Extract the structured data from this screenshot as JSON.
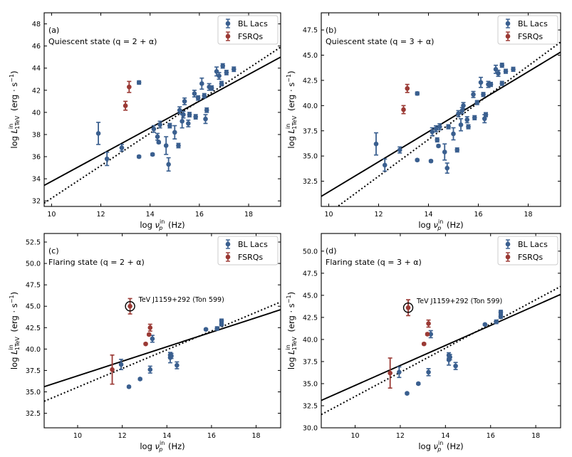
{
  "colors": {
    "bl": "#3a5f8f",
    "fsrq": "#9b3a35",
    "line": "#000000"
  },
  "chart_data": [
    {
      "type": "scatter",
      "panel_label": "(a)",
      "state_label": "Quiescent state (q = 2 + α)",
      "xlabel": "log ν_p^in (Hz)",
      "ylabel": "log L_1TeV^in (erg·s⁻¹)",
      "xlim": [
        9.7,
        19.3
      ],
      "ylim": [
        31.5,
        49.0
      ],
      "xticks": [
        10,
        12,
        14,
        16,
        18
      ],
      "yticks": [
        32,
        34,
        36,
        38,
        40,
        42,
        44,
        46,
        48
      ],
      "ytick_labels": [
        "32",
        "34",
        "36",
        "38",
        "40",
        "42",
        "44",
        "46",
        "48"
      ],
      "legend": [
        "BL Lacs",
        "FSRQs"
      ],
      "fit_solid": {
        "x": [
          9.7,
          19.3
        ],
        "y": [
          33.4,
          45.0
        ]
      },
      "fit_dotted": {
        "x": [
          9.7,
          19.3
        ],
        "y": [
          31.8,
          45.9
        ]
      },
      "series": [
        {
          "name": "BL Lacs",
          "points": [
            {
              "x": 11.9,
              "y": 38.1,
              "e": 1.0
            },
            {
              "x": 12.25,
              "y": 35.8,
              "e": 0.6
            },
            {
              "x": 12.85,
              "y": 36.8,
              "e": 0.3
            },
            {
              "x": 13.55,
              "y": 42.7,
              "e": 0.15
            },
            {
              "x": 13.55,
              "y": 36.0,
              "e": 0.1
            },
            {
              "x": 14.1,
              "y": 36.2,
              "e": 0.1
            },
            {
              "x": 14.15,
              "y": 38.5,
              "e": 0.3
            },
            {
              "x": 14.3,
              "y": 37.8,
              "e": 0.3
            },
            {
              "x": 14.35,
              "y": 37.3,
              "e": 0.1
            },
            {
              "x": 14.4,
              "y": 38.9,
              "e": 0.3
            },
            {
              "x": 14.65,
              "y": 37.0,
              "e": 0.8
            },
            {
              "x": 14.75,
              "y": 35.3,
              "e": 0.6
            },
            {
              "x": 14.8,
              "y": 38.8,
              "e": 0.2
            },
            {
              "x": 15.0,
              "y": 38.2,
              "e": 0.6
            },
            {
              "x": 15.15,
              "y": 37.0,
              "e": 0.2
            },
            {
              "x": 15.2,
              "y": 40.2,
              "e": 0.3
            },
            {
              "x": 15.3,
              "y": 39.2,
              "e": 0.6
            },
            {
              "x": 15.35,
              "y": 39.8,
              "e": 0.3
            },
            {
              "x": 15.4,
              "y": 41.0,
              "e": 0.3
            },
            {
              "x": 15.55,
              "y": 39.0,
              "e": 0.3
            },
            {
              "x": 15.6,
              "y": 39.8,
              "e": 0.2
            },
            {
              "x": 15.8,
              "y": 41.7,
              "e": 0.3
            },
            {
              "x": 15.85,
              "y": 39.6,
              "e": 0.2
            },
            {
              "x": 15.95,
              "y": 41.3,
              "e": 0.2
            },
            {
              "x": 16.1,
              "y": 42.6,
              "e": 0.5
            },
            {
              "x": 16.2,
              "y": 41.5,
              "e": 0.2
            },
            {
              "x": 16.25,
              "y": 39.4,
              "e": 0.4
            },
            {
              "x": 16.3,
              "y": 40.2,
              "e": 0.2
            },
            {
              "x": 16.4,
              "y": 42.3,
              "e": 0.3
            },
            {
              "x": 16.5,
              "y": 42.2,
              "e": 0.2
            },
            {
              "x": 16.7,
              "y": 43.7,
              "e": 0.4
            },
            {
              "x": 16.8,
              "y": 43.3,
              "e": 0.3
            },
            {
              "x": 16.9,
              "y": 42.6,
              "e": 0.2
            },
            {
              "x": 16.95,
              "y": 44.2,
              "e": 0.2
            },
            {
              "x": 17.1,
              "y": 43.6,
              "e": 0.2
            },
            {
              "x": 17.4,
              "y": 43.9,
              "e": 0.2
            }
          ]
        },
        {
          "name": "FSRQs",
          "points": [
            {
              "x": 13.0,
              "y": 40.6,
              "e": 0.4
            },
            {
              "x": 13.15,
              "y": 42.3,
              "e": 0.5
            }
          ]
        }
      ]
    },
    {
      "type": "scatter",
      "panel_label": "(b)",
      "state_label": "Quiescent state (q = 3 + α)",
      "xlabel": "log ν_p^in (Hz)",
      "ylabel": "log L_1TeV^in (erg·s⁻¹)",
      "xlim": [
        9.7,
        19.3
      ],
      "ylim": [
        30.0,
        49.2
      ],
      "xticks": [
        10,
        12,
        14,
        16,
        18
      ],
      "yticks": [
        32.5,
        35.0,
        37.5,
        40.0,
        42.5,
        45.0,
        47.5
      ],
      "ytick_labels": [
        "32.5",
        "35.0",
        "37.5",
        "40.0",
        "42.5",
        "45.0",
        "47.5"
      ],
      "legend": [
        "BL Lacs",
        "FSRQs"
      ],
      "fit_solid": {
        "x": [
          9.7,
          19.3
        ],
        "y": [
          31.0,
          45.3
        ]
      },
      "fit_dotted": {
        "x": [
          9.7,
          19.3
        ],
        "y": [
          28.8,
          46.3
        ]
      },
      "series": [
        {
          "name": "BL Lacs",
          "points": [
            {
              "x": 11.9,
              "y": 36.2,
              "e": 1.1
            },
            {
              "x": 12.25,
              "y": 34.1,
              "e": 0.6
            },
            {
              "x": 12.85,
              "y": 35.6,
              "e": 0.3
            },
            {
              "x": 13.55,
              "y": 41.2,
              "e": 0.15
            },
            {
              "x": 13.55,
              "y": 34.6,
              "e": 0.1
            },
            {
              "x": 14.1,
              "y": 34.5,
              "e": 0.1
            },
            {
              "x": 14.15,
              "y": 37.4,
              "e": 0.4
            },
            {
              "x": 14.3,
              "y": 37.7,
              "e": 0.3
            },
            {
              "x": 14.35,
              "y": 36.6,
              "e": 0.2
            },
            {
              "x": 14.4,
              "y": 36.0,
              "e": 0.1
            },
            {
              "x": 14.45,
              "y": 37.9,
              "e": 0.3
            },
            {
              "x": 14.65,
              "y": 35.4,
              "e": 0.8
            },
            {
              "x": 14.75,
              "y": 33.8,
              "e": 0.5
            },
            {
              "x": 14.8,
              "y": 37.9,
              "e": 0.2
            },
            {
              "x": 15.0,
              "y": 37.2,
              "e": 0.6
            },
            {
              "x": 15.15,
              "y": 35.6,
              "e": 0.2
            },
            {
              "x": 15.2,
              "y": 39.2,
              "e": 0.3
            },
            {
              "x": 15.3,
              "y": 38.1,
              "e": 0.6
            },
            {
              "x": 15.35,
              "y": 39.5,
              "e": 0.3
            },
            {
              "x": 15.4,
              "y": 40.0,
              "e": 0.3
            },
            {
              "x": 15.55,
              "y": 38.6,
              "e": 0.3
            },
            {
              "x": 15.6,
              "y": 37.9,
              "e": 0.2
            },
            {
              "x": 15.8,
              "y": 41.1,
              "e": 0.3
            },
            {
              "x": 15.85,
              "y": 38.8,
              "e": 0.2
            },
            {
              "x": 15.95,
              "y": 40.3,
              "e": 0.2
            },
            {
              "x": 16.1,
              "y": 42.3,
              "e": 0.5
            },
            {
              "x": 16.2,
              "y": 41.1,
              "e": 0.2
            },
            {
              "x": 16.25,
              "y": 38.7,
              "e": 0.4
            },
            {
              "x": 16.3,
              "y": 39.1,
              "e": 0.2
            },
            {
              "x": 16.4,
              "y": 42.1,
              "e": 0.3
            },
            {
              "x": 16.5,
              "y": 42.1,
              "e": 0.2
            },
            {
              "x": 16.7,
              "y": 43.6,
              "e": 0.4
            },
            {
              "x": 16.8,
              "y": 43.2,
              "e": 0.3
            },
            {
              "x": 16.95,
              "y": 42.2,
              "e": 0.2
            },
            {
              "x": 16.95,
              "y": 44.0,
              "e": 0.2
            },
            {
              "x": 17.1,
              "y": 43.4,
              "e": 0.2
            },
            {
              "x": 17.4,
              "y": 43.6,
              "e": 0.2
            }
          ]
        },
        {
          "name": "FSRQs",
          "points": [
            {
              "x": 13.0,
              "y": 39.6,
              "e": 0.4
            },
            {
              "x": 13.15,
              "y": 41.7,
              "e": 0.4
            }
          ]
        }
      ]
    },
    {
      "type": "scatter",
      "panel_label": "(c)",
      "state_label": "Flaring state (q = 2 + α)",
      "xlabel": "log ν_p^in (Hz)",
      "ylabel": "log L_1TeV^in (erg·s⁻¹)",
      "xlim": [
        8.5,
        19.1
      ],
      "ylim": [
        30.8,
        53.5
      ],
      "xticks": [
        10,
        12,
        14,
        16,
        18
      ],
      "yticks": [
        32.5,
        35.0,
        37.5,
        40.0,
        42.5,
        45.0,
        47.5,
        50.0,
        52.5
      ],
      "ytick_labels": [
        "32.5",
        "35.0",
        "37.5",
        "40.0",
        "42.5",
        "45.0",
        "47.5",
        "50.0",
        "52.5"
      ],
      "legend": [
        "BL Lacs",
        "FSRQs"
      ],
      "annotation": "TeV J1159+292 (Ton 599)",
      "highlight": {
        "x": 12.35,
        "y": 45.0,
        "e": 0.9
      },
      "fit_solid": {
        "x": [
          8.5,
          19.1
        ],
        "y": [
          35.6,
          44.6
        ]
      },
      "fit_dotted": {
        "x": [
          8.5,
          19.1
        ],
        "y": [
          33.9,
          45.5
        ]
      },
      "series": [
        {
          "name": "BL Lacs",
          "points": [
            {
              "x": 11.95,
              "y": 38.2,
              "e": 0.6
            },
            {
              "x": 12.3,
              "y": 35.6,
              "e": 0.1
            },
            {
              "x": 12.8,
              "y": 36.5,
              "e": 0.1
            },
            {
              "x": 13.25,
              "y": 37.6,
              "e": 0.4
            },
            {
              "x": 13.35,
              "y": 41.2,
              "e": 0.4
            },
            {
              "x": 14.15,
              "y": 39.3,
              "e": 0.3
            },
            {
              "x": 14.15,
              "y": 39.0,
              "e": 0.6
            },
            {
              "x": 14.2,
              "y": 39.2,
              "e": 0.3
            },
            {
              "x": 14.45,
              "y": 38.1,
              "e": 0.4
            },
            {
              "x": 15.75,
              "y": 42.3,
              "e": 0.1
            },
            {
              "x": 16.25,
              "y": 42.4,
              "e": 0.2
            },
            {
              "x": 16.45,
              "y": 42.9,
              "e": 0.2
            },
            {
              "x": 16.45,
              "y": 43.3,
              "e": 0.2
            }
          ]
        },
        {
          "name": "FSRQs",
          "points": [
            {
              "x": 11.55,
              "y": 37.6,
              "e": 1.7
            },
            {
              "x": 13.05,
              "y": 40.6,
              "e": 0.1
            },
            {
              "x": 13.2,
              "y": 41.7,
              "e": 0.1
            },
            {
              "x": 13.25,
              "y": 42.5,
              "e": 0.4
            }
          ]
        }
      ]
    },
    {
      "type": "scatter",
      "panel_label": "(d)",
      "state_label": "Flaring state (q = 3 + α)",
      "xlabel": "log ν_p^in (Hz)",
      "ylabel": "log L_1TeV^in (erg·s⁻¹)",
      "xlim": [
        8.5,
        19.1
      ],
      "ylim": [
        30.0,
        52.0
      ],
      "xticks": [
        10,
        12,
        14,
        16,
        18
      ],
      "yticks": [
        30.0,
        32.5,
        35.0,
        37.5,
        40.0,
        42.5,
        45.0,
        47.5,
        50.0
      ],
      "ytick_labels": [
        "30.0",
        "32.5",
        "35.0",
        "37.5",
        "40.0",
        "42.5",
        "45.0",
        "47.5",
        "50.0"
      ],
      "legend": [
        "BL Lacs",
        "FSRQs"
      ],
      "annotation": "TeV J1159+292 (Ton 599)",
      "highlight": {
        "x": 12.35,
        "y": 43.6,
        "e": 0.9
      },
      "fit_solid": {
        "x": [
          8.5,
          19.1
        ],
        "y": [
          33.1,
          45.1
        ]
      },
      "fit_dotted": {
        "x": [
          8.5,
          19.1
        ],
        "y": [
          31.5,
          46.0
        ]
      },
      "series": [
        {
          "name": "BL Lacs",
          "points": [
            {
              "x": 11.95,
              "y": 36.3,
              "e": 0.6
            },
            {
              "x": 12.3,
              "y": 33.9,
              "e": 0.1
            },
            {
              "x": 12.8,
              "y": 35.0,
              "e": 0.1
            },
            {
              "x": 13.25,
              "y": 36.3,
              "e": 0.4
            },
            {
              "x": 13.35,
              "y": 40.6,
              "e": 0.4
            },
            {
              "x": 14.15,
              "y": 38.2,
              "e": 0.3
            },
            {
              "x": 14.15,
              "y": 37.7,
              "e": 0.6
            },
            {
              "x": 14.2,
              "y": 38.0,
              "e": 0.3
            },
            {
              "x": 14.45,
              "y": 37.0,
              "e": 0.4
            },
            {
              "x": 15.75,
              "y": 41.7,
              "e": 0.1
            },
            {
              "x": 16.25,
              "y": 42.0,
              "e": 0.2
            },
            {
              "x": 16.45,
              "y": 42.6,
              "e": 0.2
            },
            {
              "x": 16.45,
              "y": 43.1,
              "e": 0.2
            }
          ]
        },
        {
          "name": "FSRQs",
          "points": [
            {
              "x": 11.55,
              "y": 36.2,
              "e": 1.7
            },
            {
              "x": 13.05,
              "y": 39.5,
              "e": 0.1
            },
            {
              "x": 13.2,
              "y": 40.6,
              "e": 0.1
            },
            {
              "x": 13.25,
              "y": 41.8,
              "e": 0.4
            }
          ]
        }
      ]
    }
  ]
}
